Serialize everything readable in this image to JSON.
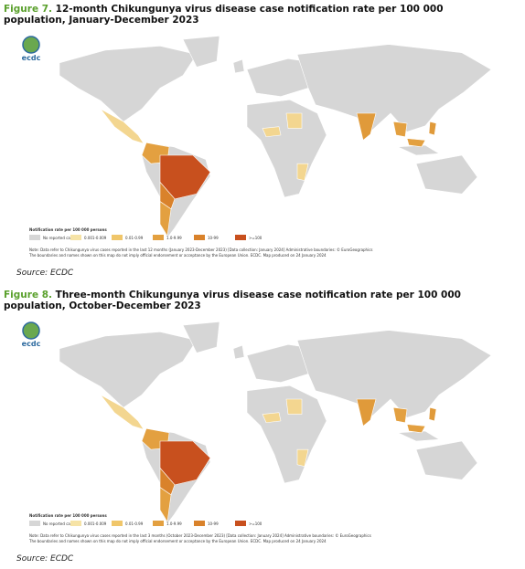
{
  "figures": [
    {
      "label": "Figure 7.",
      "title": "12-month Chikungunya virus disease case notification rate per 100 000 population, January-December 2023",
      "logo": "ecdc",
      "legend": {
        "title": "Notification rate per 100 000 persons",
        "items": [
          "No reported cases",
          "0.001-0.009",
          "0.01-0.99",
          "1.0-9.99",
          "10-99",
          ">=100"
        ]
      },
      "note": [
        "Note: Data refer to Chikungunya virus cases reported in the last 12 months (January 2023-December 2023) [Data collection: January 2024] Administrative boundaries: © EuroGeographics",
        "The boundaries and names shown on this map do not imply official endorsement or acceptance by the European Union. ECDC. Map produced on 24 January 2024"
      ],
      "source": "Source: ECDC"
    },
    {
      "label": "Figure 8.",
      "title": "Three-month Chikungunya virus disease case notification rate per 100 000 population, October-December 2023",
      "logo": "ecdc",
      "legend": {
        "title": "Notification rate per 100 000 persons",
        "items": [
          "No reported cases",
          "0.001-0.009",
          "0.01-0.99",
          "1.0-9.99",
          "10-99",
          ">=100"
        ]
      },
      "note": [
        "Note: Data refer to Chikungunya virus cases reported in the last 3 months (October 2023-December 2023) [Data collection: January 2024] Administrative boundaries: © EuroGeographics",
        "The boundaries and names shown on this map do not imply official endorsement or acceptance by the European Union. ECDC. Map produced on 24 January 2024"
      ],
      "source": "Source: ECDC"
    }
  ]
}
